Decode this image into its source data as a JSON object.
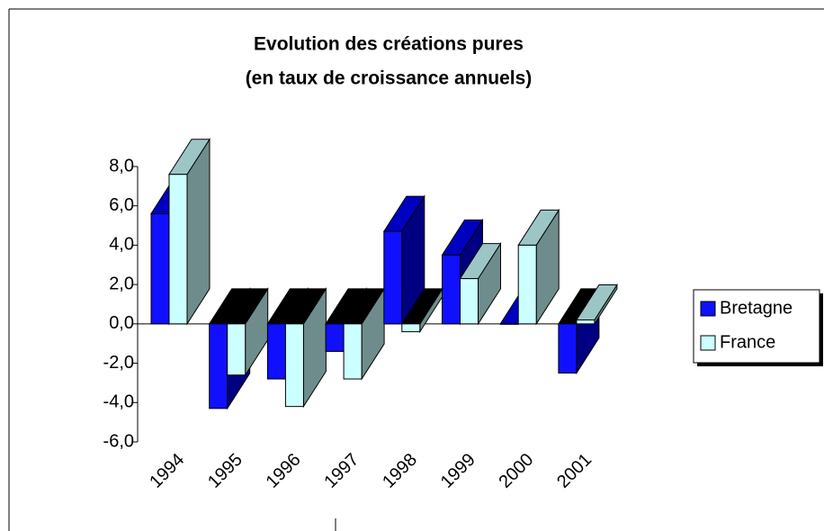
{
  "chart_data": {
    "type": "bar3d",
    "title": "Evolution des créations pures",
    "subtitle": "(en taux de croissance annuels)",
    "categories": [
      "1994",
      "1995",
      "1996",
      "1997",
      "1998",
      "1999",
      "2000",
      "2001"
    ],
    "series": [
      {
        "name": "Bretagne",
        "color": "#1010ff",
        "side_color": "#000080",
        "top_color": "#0000c0",
        "values": [
          5.6,
          -4.3,
          -2.8,
          -1.4,
          4.7,
          3.5,
          0.0,
          -2.5
        ]
      },
      {
        "name": "France",
        "color": "#ccffff",
        "side_color": "#6f8c8c",
        "top_color": "#9cc6c6",
        "values": [
          7.6,
          -2.6,
          -4.2,
          -2.8,
          -0.4,
          2.3,
          4.0,
          0.2
        ]
      }
    ],
    "ylim": [
      -6,
      8
    ],
    "yticks": [
      {
        "value": -6,
        "label": "-6,0"
      },
      {
        "value": -4,
        "label": "-4,0"
      },
      {
        "value": -2,
        "label": "-2,0"
      },
      {
        "value": 0,
        "label": "0,0"
      },
      {
        "value": 2,
        "label": "2,0"
      },
      {
        "value": 4,
        "label": "4,0"
      },
      {
        "value": 6,
        "label": "6,0"
      },
      {
        "value": 8,
        "label": "8,0"
      }
    ],
    "legend": "right"
  }
}
